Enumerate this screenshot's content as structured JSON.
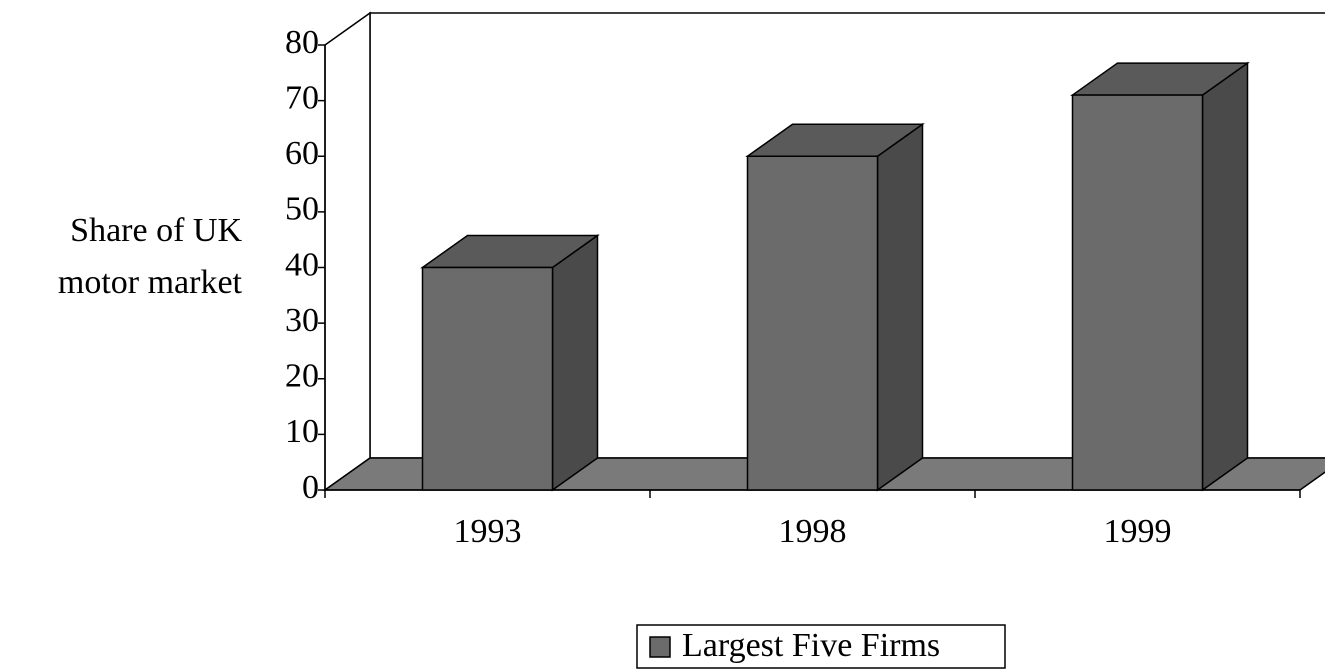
{
  "chart_data": {
    "type": "bar3d",
    "y_label": "Share of UK motor market",
    "categories": [
      "1993",
      "1998",
      "1999"
    ],
    "series": [
      {
        "name": "Largest Five Firms",
        "color": "#6b6b6b",
        "values": [
          40,
          60,
          71
        ]
      }
    ],
    "ylim": [
      0,
      80
    ],
    "yticks": [
      0,
      10,
      20,
      30,
      40,
      50,
      60,
      70,
      80
    ],
    "legend": "bottom"
  }
}
